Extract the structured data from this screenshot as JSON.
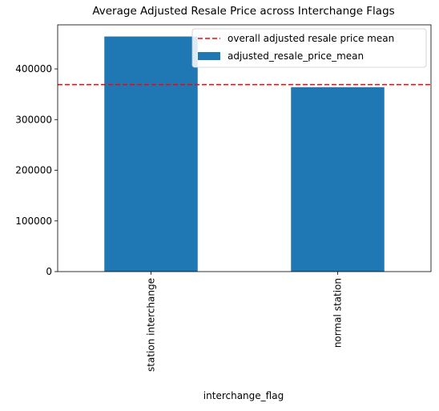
{
  "chart_data": {
    "type": "bar",
    "title": "Average Adjusted Resale Price across Interchange Flags",
    "xlabel": "interchange_flag",
    "ylabel": "",
    "categories": [
      "station interchange",
      "normal station"
    ],
    "series": [
      {
        "name": "adjusted_resale_price_mean",
        "values": [
          464000,
          364000
        ],
        "color": "#1f77b4"
      }
    ],
    "reference_lines": [
      {
        "name": "overall adjusted resale price mean",
        "value": 369000,
        "color": "#ff0000",
        "style": "dashed"
      }
    ],
    "ylim": [
      0,
      487000
    ],
    "yticks": [
      0,
      100000,
      200000,
      300000,
      400000
    ],
    "ytick_labels": [
      "0",
      "100000",
      "200000",
      "300000",
      "400000"
    ],
    "legend_position": "top-right",
    "grid": false
  }
}
